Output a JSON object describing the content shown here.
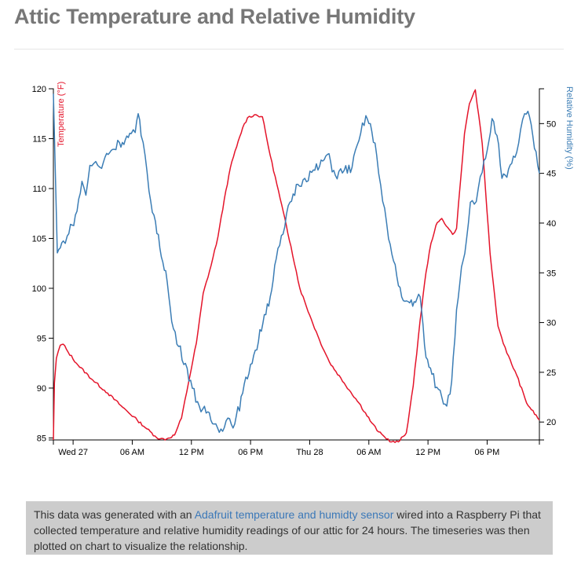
{
  "header": {
    "title": "Attic Temperature and Relative Humidity"
  },
  "caption": {
    "before_link": "This data was generated with an ",
    "link_text": "Adafruit temperature and humidty sensor",
    "after_link": " wired into a Raspberry Pi that collected temperature and relative humidity readings of our attic for 24 hours. The timeseries was then plotted on chart to visualize the relationship."
  },
  "colors": {
    "temperature": "#e4142a",
    "humidity": "#3b7db5",
    "title": "#777777",
    "caption_bg": "#cccccc",
    "link": "#3b78b8"
  },
  "chart_data": {
    "type": "line",
    "x_unit": "hours since Tue 26 ~22:00",
    "x_ticks": [
      {
        "x": 2,
        "label": "Wed 27"
      },
      {
        "x": 8,
        "label": "06 AM"
      },
      {
        "x": 14,
        "label": "12 PM"
      },
      {
        "x": 20,
        "label": "06 PM"
      },
      {
        "x": 26,
        "label": "Thu 28"
      },
      {
        "x": 32,
        "label": "06 AM"
      },
      {
        "x": 38,
        "label": "12 PM"
      },
      {
        "x": 44,
        "label": "06 PM"
      }
    ],
    "xlim": [
      0,
      49.3
    ],
    "y_left": {
      "label": "Temperature (°F)",
      "ylim": [
        84.8,
        120
      ],
      "ticks": [
        85,
        90,
        95,
        100,
        105,
        110,
        115,
        120
      ]
    },
    "y_right": {
      "label": "Relative Humidity (%)",
      "ylim": [
        18.2,
        53.5
      ],
      "ticks": [
        20,
        25,
        30,
        35,
        40,
        45,
        50
      ]
    },
    "series": [
      {
        "name": "Temperature (°F)",
        "axis": "left",
        "color": "#e4142a",
        "x": [
          0,
          0.1,
          0.3,
          0.7,
          1.0,
          1.5,
          2.5,
          4,
          5.5,
          7,
          8.5,
          9.5,
          10.3,
          10.8,
          11.5,
          12.3,
          13,
          13.7,
          14.5,
          15.2,
          16,
          16.7,
          17.5,
          18.1,
          18.6,
          19.2,
          19.7,
          20.4,
          21.2,
          22,
          23,
          24.1,
          25,
          26,
          27,
          28,
          29.5,
          31,
          32.3,
          33,
          33.6,
          34.3,
          35,
          35.8,
          36.5,
          37.2,
          37.8,
          38.3,
          38.8,
          39.4,
          40,
          40.5,
          40.9,
          41.3,
          41.7,
          42.2,
          42.8,
          43.5,
          44.3,
          45.1,
          46,
          47,
          48,
          49.3
        ],
        "values": [
          84.8,
          90.5,
          93,
          94.3,
          94.4,
          93.6,
          92.3,
          90.8,
          89.5,
          88.1,
          86.8,
          85.9,
          85.2,
          84.9,
          84.9,
          85.3,
          87,
          90.5,
          94.5,
          99.5,
          102.3,
          105.2,
          109.8,
          112.7,
          114.2,
          116.1,
          117.1,
          117.4,
          117.2,
          113.3,
          109,
          104.2,
          100,
          97.3,
          94.8,
          92.6,
          90.5,
          88.5,
          86.5,
          85.6,
          85.1,
          84.6,
          84.6,
          85.5,
          90.2,
          96.8,
          101.6,
          104.5,
          106.3,
          107,
          106.1,
          105.4,
          106,
          110.8,
          115.5,
          118.5,
          119.9,
          114.5,
          103.5,
          96.2,
          93.5,
          91.3,
          88.5,
          86.8
        ]
      },
      {
        "name": "Relative Humidity (%)",
        "axis": "right",
        "color": "#3b7db5",
        "x": [
          0,
          0.2,
          0.4,
          0.7,
          1.0,
          1.4,
          1.9,
          2.4,
          2.9,
          3.3,
          3.7,
          4.1,
          4.5,
          4.9,
          5.4,
          6.0,
          6.7,
          7.3,
          7.9,
          8.3,
          8.6,
          8.9,
          9.3,
          9.7,
          10.2,
          10.8,
          11.4,
          12.0,
          12.7,
          13.4,
          14.1,
          14.8,
          15.5,
          16.3,
          17.0,
          17.7,
          18.4,
          19.2,
          20.0,
          20.8,
          21.4,
          22.0,
          22.6,
          23.3,
          24.0,
          24.8,
          25.5,
          26.2,
          27.0,
          27.8,
          28.6,
          29.5,
          30.3,
          31.0,
          31.7,
          32.3,
          32.8,
          33.2,
          33.6,
          34.0,
          34.5,
          35.0,
          35.5,
          36.0,
          36.6,
          37.2,
          37.8,
          38.4,
          38.9,
          39.4,
          39.9,
          40.4,
          40.9,
          41.4,
          41.9,
          42.3,
          42.7,
          43.1,
          43.5,
          44.0,
          44.5,
          45.0,
          45.5,
          46.0,
          46.5,
          47.0,
          47.4,
          47.8,
          48.3,
          48.8,
          49.3
        ],
        "values": [
          53,
          45,
          37,
          37.5,
          38.2,
          38.7,
          39.8,
          41.2,
          44.2,
          42.8,
          45.8,
          46,
          45.8,
          45.5,
          47,
          47.4,
          48.1,
          48.4,
          49,
          49.1,
          51,
          48.8,
          46.8,
          43.2,
          40.8,
          37.5,
          35.2,
          30.1,
          27.6,
          25.9,
          23.4,
          21.6,
          20.9,
          19.8,
          19.3,
          20.4,
          19.8,
          22.9,
          25.8,
          28.1,
          30.8,
          32.6,
          36.4,
          38.9,
          42.1,
          43.9,
          44.5,
          45.1,
          45.7,
          46.9,
          44.8,
          45.3,
          45.6,
          48.3,
          50.8,
          49.2,
          46.8,
          43.8,
          41.5,
          38.4,
          36.2,
          33.7,
          32.2,
          32.1,
          32.1,
          32.6,
          26.5,
          24.8,
          23.5,
          22.5,
          21.6,
          24.1,
          31.3,
          35.6,
          38.3,
          42.1,
          41.9,
          43.5,
          45.1,
          47.3,
          50.5,
          48.8,
          44.5,
          44.6,
          46.0,
          47.1,
          49.4,
          51.0,
          50.7,
          47.5,
          45.0
        ]
      }
    ],
    "grid": false,
    "legend": "none"
  }
}
